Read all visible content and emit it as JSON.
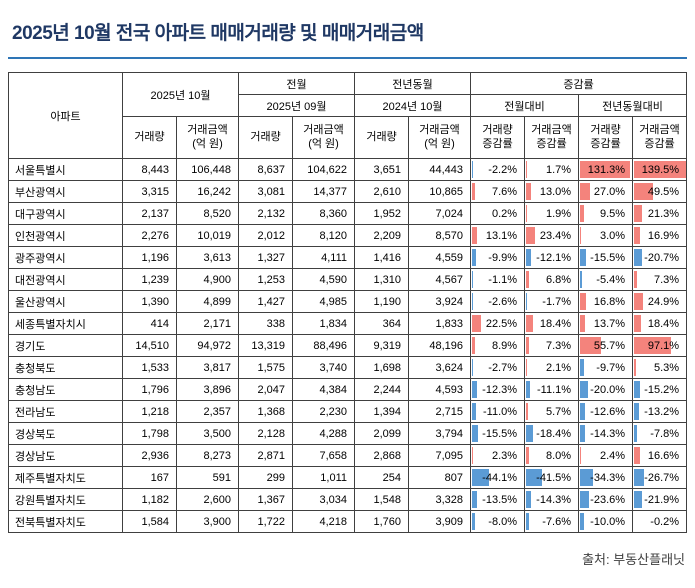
{
  "title": "2025년 10월 전국 아파트 매매거래량 및 매매거래금액",
  "source": "출처: 부동산플래닛",
  "colors": {
    "title": "#1f3864",
    "rule": "#2e75b6",
    "header_gray": "#d9d9d9",
    "border": "#404040",
    "bar_positive": "#f4837c",
    "bar_negative": "#5b9bd5"
  },
  "chart_data": {
    "type": "table",
    "title": "2025년 10월 전국 아파트 매매거래량 및 매매거래금액",
    "bar_scale_max": 139.5,
    "header": {
      "region": "아파트",
      "groups": {
        "current": "2025년 10월",
        "prev_month": "전월",
        "prev_year": "전년동월",
        "change": "증감률"
      },
      "sub_groups": {
        "prev_month": "2025년 09월",
        "prev_year": "2024년 10월",
        "vs_prev_month": "전월대비",
        "vs_prev_year": "전년동월대비"
      },
      "columns": {
        "volume": "거래량",
        "amount": "거래금액\n(억 원)",
        "volume_change": "거래량\n증감률",
        "amount_change": "거래금액\n증감률"
      }
    },
    "rows": [
      {
        "region": "서울특별시",
        "values": [
          "8,443",
          "106,448",
          "8,637",
          "104,622",
          "3,651",
          "44,443"
        ],
        "changes": [
          "-2.2%",
          "1.7%",
          "131.3%",
          "139.5%"
        ]
      },
      {
        "region": "부산광역시",
        "values": [
          "3,315",
          "16,242",
          "3,081",
          "14,377",
          "2,610",
          "10,865"
        ],
        "changes": [
          "7.6%",
          "13.0%",
          "27.0%",
          "49.5%"
        ]
      },
      {
        "region": "대구광역시",
        "values": [
          "2,137",
          "8,520",
          "2,132",
          "8,360",
          "1,952",
          "7,024"
        ],
        "changes": [
          "0.2%",
          "1.9%",
          "9.5%",
          "21.3%"
        ]
      },
      {
        "region": "인천광역시",
        "values": [
          "2,276",
          "10,019",
          "2,012",
          "8,120",
          "2,209",
          "8,570"
        ],
        "changes": [
          "13.1%",
          "23.4%",
          "3.0%",
          "16.9%"
        ]
      },
      {
        "region": "광주광역시",
        "values": [
          "1,196",
          "3,613",
          "1,327",
          "4,111",
          "1,416",
          "4,559"
        ],
        "changes": [
          "-9.9%",
          "-12.1%",
          "-15.5%",
          "-20.7%"
        ]
      },
      {
        "region": "대전광역시",
        "values": [
          "1,239",
          "4,900",
          "1,253",
          "4,590",
          "1,310",
          "4,567"
        ],
        "changes": [
          "-1.1%",
          "6.8%",
          "-5.4%",
          "7.3%"
        ]
      },
      {
        "region": "울산광역시",
        "values": [
          "1,390",
          "4,899",
          "1,427",
          "4,985",
          "1,190",
          "3,924"
        ],
        "changes": [
          "-2.6%",
          "-1.7%",
          "16.8%",
          "24.9%"
        ]
      },
      {
        "region": "세종특별자치시",
        "values": [
          "414",
          "2,171",
          "338",
          "1,834",
          "364",
          "1,833"
        ],
        "changes": [
          "22.5%",
          "18.4%",
          "13.7%",
          "18.4%"
        ]
      },
      {
        "region": "경기도",
        "values": [
          "14,510",
          "94,972",
          "13,319",
          "88,496",
          "9,319",
          "48,196"
        ],
        "changes": [
          "8.9%",
          "7.3%",
          "55.7%",
          "97.1%"
        ]
      },
      {
        "region": "충청북도",
        "values": [
          "1,533",
          "3,817",
          "1,575",
          "3,740",
          "1,698",
          "3,624"
        ],
        "changes": [
          "-2.7%",
          "2.1%",
          "-9.7%",
          "5.3%"
        ]
      },
      {
        "region": "충청남도",
        "values": [
          "1,796",
          "3,896",
          "2,047",
          "4,384",
          "2,244",
          "4,593"
        ],
        "changes": [
          "-12.3%",
          "-11.1%",
          "-20.0%",
          "-15.2%"
        ]
      },
      {
        "region": "전라남도",
        "values": [
          "1,218",
          "2,357",
          "1,368",
          "2,230",
          "1,394",
          "2,715"
        ],
        "changes": [
          "-11.0%",
          "5.7%",
          "-12.6%",
          "-13.2%"
        ]
      },
      {
        "region": "경상북도",
        "values": [
          "1,798",
          "3,500",
          "2,128",
          "4,288",
          "2,099",
          "3,794"
        ],
        "changes": [
          "-15.5%",
          "-18.4%",
          "-14.3%",
          "-7.8%"
        ]
      },
      {
        "region": "경상남도",
        "values": [
          "2,936",
          "8,273",
          "2,871",
          "7,658",
          "2,868",
          "7,095"
        ],
        "changes": [
          "2.3%",
          "8.0%",
          "2.4%",
          "16.6%"
        ]
      },
      {
        "region": "제주특별자치도",
        "values": [
          "167",
          "591",
          "299",
          "1,011",
          "254",
          "807"
        ],
        "changes": [
          "-44.1%",
          "-41.5%",
          "-34.3%",
          "-26.7%"
        ]
      },
      {
        "region": "강원특별자치도",
        "values": [
          "1,182",
          "2,600",
          "1,367",
          "3,034",
          "1,548",
          "3,328"
        ],
        "changes": [
          "-13.5%",
          "-14.3%",
          "-23.6%",
          "-21.9%"
        ]
      },
      {
        "region": "전북특별자치도",
        "values": [
          "1,584",
          "3,900",
          "1,722",
          "4,218",
          "1,760",
          "3,909"
        ],
        "changes": [
          "-8.0%",
          "-7.6%",
          "-10.0%",
          "-0.2%"
        ]
      }
    ]
  }
}
